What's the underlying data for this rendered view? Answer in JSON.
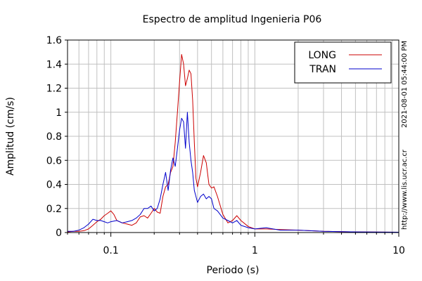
{
  "chart_data": {
    "type": "line",
    "title": "Espectro de amplitud Ingenieria P06",
    "xlabel": "Periodo (s)",
    "ylabel": "Amplitud (cm/s)",
    "xscale": "log",
    "xlim": [
      0.05,
      10
    ],
    "ylim": [
      0,
      1.6
    ],
    "x_ticks": [
      {
        "value": 0.1,
        "label": "0.1"
      },
      {
        "value": 1,
        "label": "1"
      },
      {
        "value": 10,
        "label": "10"
      }
    ],
    "y_ticks": [
      {
        "value": 0,
        "label": "0"
      },
      {
        "value": 0.2,
        "label": "0.2"
      },
      {
        "value": 0.4,
        "label": "0.4"
      },
      {
        "value": 0.6,
        "label": "0.6"
      },
      {
        "value": 0.8,
        "label": "0.8"
      },
      {
        "value": 1.0,
        "label": "1"
      },
      {
        "value": 1.2,
        "label": "1.2"
      },
      {
        "value": 1.4,
        "label": "1.4"
      },
      {
        "value": 1.6,
        "label": "1.6"
      }
    ],
    "grid": true,
    "legend_position": "top-right",
    "series": [
      {
        "name": "LONG",
        "color": "#cc0000",
        "points": [
          [
            0.05,
            0.005
          ],
          [
            0.055,
            0.01
          ],
          [
            0.06,
            0.01
          ],
          [
            0.065,
            0.015
          ],
          [
            0.07,
            0.03
          ],
          [
            0.075,
            0.06
          ],
          [
            0.08,
            0.09
          ],
          [
            0.085,
            0.11
          ],
          [
            0.09,
            0.14
          ],
          [
            0.095,
            0.16
          ],
          [
            0.1,
            0.18
          ],
          [
            0.105,
            0.15
          ],
          [
            0.11,
            0.1
          ],
          [
            0.12,
            0.08
          ],
          [
            0.13,
            0.07
          ],
          [
            0.14,
            0.06
          ],
          [
            0.15,
            0.08
          ],
          [
            0.16,
            0.13
          ],
          [
            0.17,
            0.14
          ],
          [
            0.18,
            0.12
          ],
          [
            0.19,
            0.16
          ],
          [
            0.2,
            0.2
          ],
          [
            0.21,
            0.17
          ],
          [
            0.22,
            0.16
          ],
          [
            0.23,
            0.3
          ],
          [
            0.24,
            0.38
          ],
          [
            0.25,
            0.4
          ],
          [
            0.26,
            0.5
          ],
          [
            0.27,
            0.55
          ],
          [
            0.28,
            0.75
          ],
          [
            0.29,
            1.0
          ],
          [
            0.3,
            1.25
          ],
          [
            0.31,
            1.48
          ],
          [
            0.32,
            1.4
          ],
          [
            0.33,
            1.22
          ],
          [
            0.34,
            1.28
          ],
          [
            0.35,
            1.35
          ],
          [
            0.36,
            1.32
          ],
          [
            0.37,
            1.1
          ],
          [
            0.38,
            0.75
          ],
          [
            0.39,
            0.45
          ],
          [
            0.4,
            0.38
          ],
          [
            0.42,
            0.5
          ],
          [
            0.44,
            0.64
          ],
          [
            0.46,
            0.58
          ],
          [
            0.48,
            0.4
          ],
          [
            0.5,
            0.37
          ],
          [
            0.52,
            0.38
          ],
          [
            0.55,
            0.3
          ],
          [
            0.6,
            0.15
          ],
          [
            0.65,
            0.08
          ],
          [
            0.7,
            0.1
          ],
          [
            0.75,
            0.14
          ],
          [
            0.8,
            0.1
          ],
          [
            0.9,
            0.05
          ],
          [
            1.0,
            0.03
          ],
          [
            1.2,
            0.03
          ],
          [
            1.5,
            0.025
          ],
          [
            2.0,
            0.02
          ],
          [
            3.0,
            0.01
          ],
          [
            5.0,
            0.005
          ],
          [
            10,
            0.003
          ]
        ]
      },
      {
        "name": "TRAN",
        "color": "#0000cc",
        "points": [
          [
            0.05,
            0.01
          ],
          [
            0.055,
            0.01
          ],
          [
            0.06,
            0.02
          ],
          [
            0.065,
            0.04
          ],
          [
            0.07,
            0.07
          ],
          [
            0.075,
            0.11
          ],
          [
            0.08,
            0.1
          ],
          [
            0.085,
            0.1
          ],
          [
            0.09,
            0.09
          ],
          [
            0.095,
            0.08
          ],
          [
            0.1,
            0.09
          ],
          [
            0.11,
            0.1
          ],
          [
            0.12,
            0.08
          ],
          [
            0.13,
            0.09
          ],
          [
            0.14,
            0.1
          ],
          [
            0.15,
            0.12
          ],
          [
            0.16,
            0.15
          ],
          [
            0.17,
            0.2
          ],
          [
            0.18,
            0.2
          ],
          [
            0.19,
            0.22
          ],
          [
            0.2,
            0.18
          ],
          [
            0.21,
            0.2
          ],
          [
            0.22,
            0.28
          ],
          [
            0.23,
            0.4
          ],
          [
            0.24,
            0.5
          ],
          [
            0.25,
            0.35
          ],
          [
            0.26,
            0.52
          ],
          [
            0.27,
            0.62
          ],
          [
            0.28,
            0.55
          ],
          [
            0.29,
            0.7
          ],
          [
            0.3,
            0.85
          ],
          [
            0.31,
            0.95
          ],
          [
            0.32,
            0.92
          ],
          [
            0.33,
            0.7
          ],
          [
            0.34,
            1.0
          ],
          [
            0.35,
            0.75
          ],
          [
            0.36,
            0.6
          ],
          [
            0.37,
            0.5
          ],
          [
            0.38,
            0.35
          ],
          [
            0.39,
            0.3
          ],
          [
            0.4,
            0.25
          ],
          [
            0.42,
            0.3
          ],
          [
            0.44,
            0.32
          ],
          [
            0.46,
            0.28
          ],
          [
            0.48,
            0.3
          ],
          [
            0.5,
            0.28
          ],
          [
            0.52,
            0.2
          ],
          [
            0.55,
            0.18
          ],
          [
            0.6,
            0.12
          ],
          [
            0.65,
            0.1
          ],
          [
            0.7,
            0.08
          ],
          [
            0.75,
            0.1
          ],
          [
            0.8,
            0.06
          ],
          [
            0.9,
            0.04
          ],
          [
            1.0,
            0.03
          ],
          [
            1.2,
            0.04
          ],
          [
            1.5,
            0.02
          ],
          [
            2.0,
            0.02
          ],
          [
            3.0,
            0.01
          ],
          [
            5.0,
            0.005
          ],
          [
            10,
            0.003
          ]
        ]
      }
    ]
  },
  "side_text": {
    "timestamp": "2021-08-01 05:44:00 PM",
    "url": "http://www.lis.ucr.ac.cr"
  }
}
